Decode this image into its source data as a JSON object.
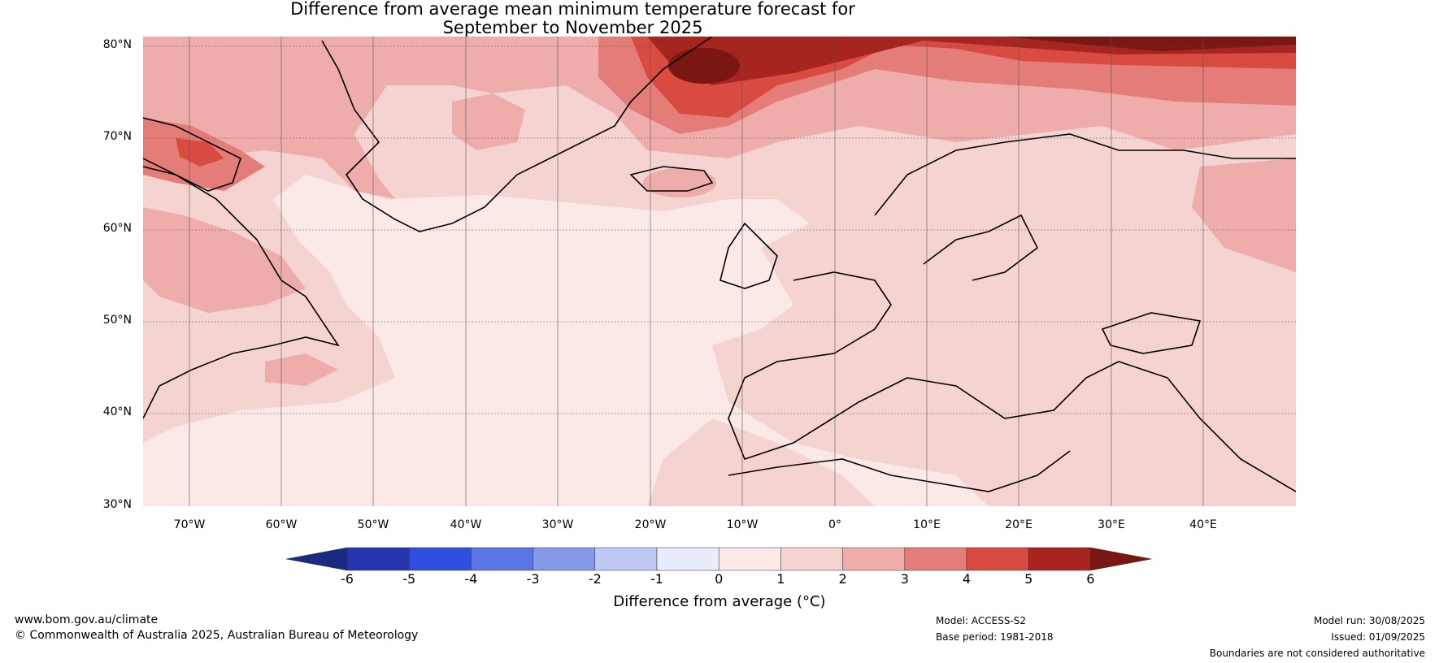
{
  "title_line1": "Difference from average mean minimum temperature forecast for",
  "title_line2": "September to November 2025",
  "lat_labels": [
    "80°N",
    "70°N",
    "60°N",
    "50°N",
    "40°N",
    "30°N"
  ],
  "lon_labels": [
    "70°W",
    "60°W",
    "50°W",
    "40°W",
    "30°W",
    "20°W",
    "10°W",
    "0°",
    "10°E",
    "20°E",
    "30°E",
    "40°E"
  ],
  "colorbar": {
    "ticks": [
      "-6",
      "-5",
      "-4",
      "-3",
      "-2",
      "-1",
      "0",
      "1",
      "2",
      "3",
      "4",
      "5",
      "6"
    ],
    "colors": [
      "#1a2a80",
      "#2536b0",
      "#2f4fe0",
      "#5a76e6",
      "#8599ea",
      "#bfc9f3",
      "#e8ecfb",
      "#fbe9e7",
      "#f4d3d1",
      "#eeacaa",
      "#e47c77",
      "#d94b40",
      "#a8251f",
      "#7a1712"
    ],
    "label": "Difference from average (°C)"
  },
  "footer": {
    "url": "www.bom.gov.au/climate",
    "copyright": "© Commonwealth of Australia 2025, Australian Bureau of Meteorology",
    "model": "Model: ACCESS-S2",
    "base_period": "Base period: 1981-2018",
    "model_run": "Model run: 30/08/2025",
    "issued": "Issued: 01/09/2025",
    "disclaimer": "Boundaries are not considered authoritative"
  }
}
